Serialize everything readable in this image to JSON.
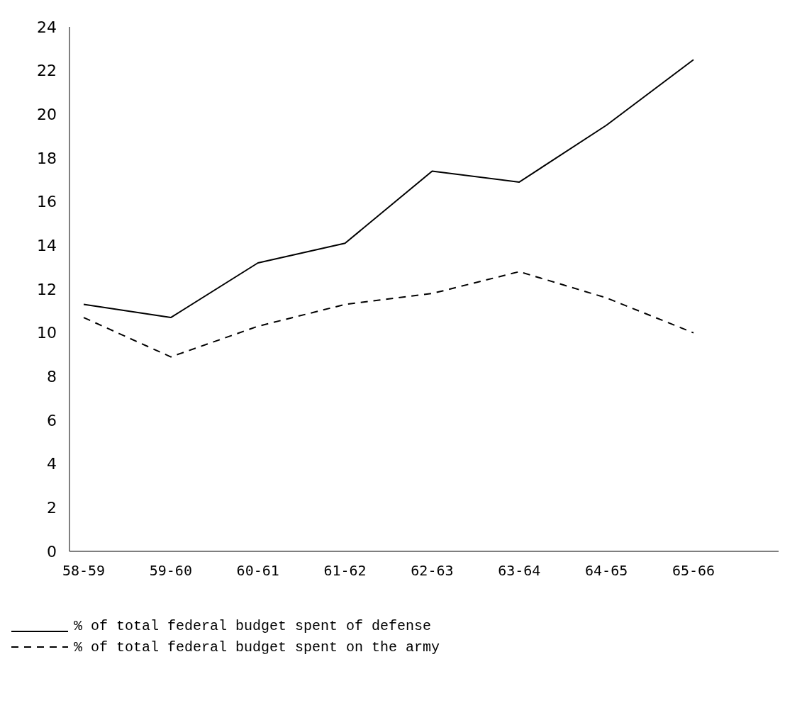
{
  "chart_data": {
    "type": "line",
    "categories": [
      "58-59",
      "59-60",
      "60-61",
      "61-62",
      "62-63",
      "63-64",
      "64-65",
      "65-66"
    ],
    "series": [
      {
        "name": "% of total federal budget spent of defense",
        "color": "#000000",
        "line_style": "solid",
        "values": [
          11.3,
          10.7,
          13.2,
          14.1,
          17.4,
          16.9,
          19.5,
          22.5
        ]
      },
      {
        "name": "% of total federal budget spent on the army",
        "color": "#000000",
        "line_style": "dashed",
        "values": [
          10.7,
          8.9,
          10.3,
          11.3,
          11.8,
          12.8,
          11.6,
          10.0
        ]
      }
    ],
    "ylim": [
      0,
      24
    ],
    "yticks": [
      0,
      2,
      4,
      6,
      8,
      10,
      12,
      14,
      16,
      18,
      20,
      22,
      24
    ],
    "grid": false,
    "legend": "bottom left",
    "marker": "none"
  }
}
